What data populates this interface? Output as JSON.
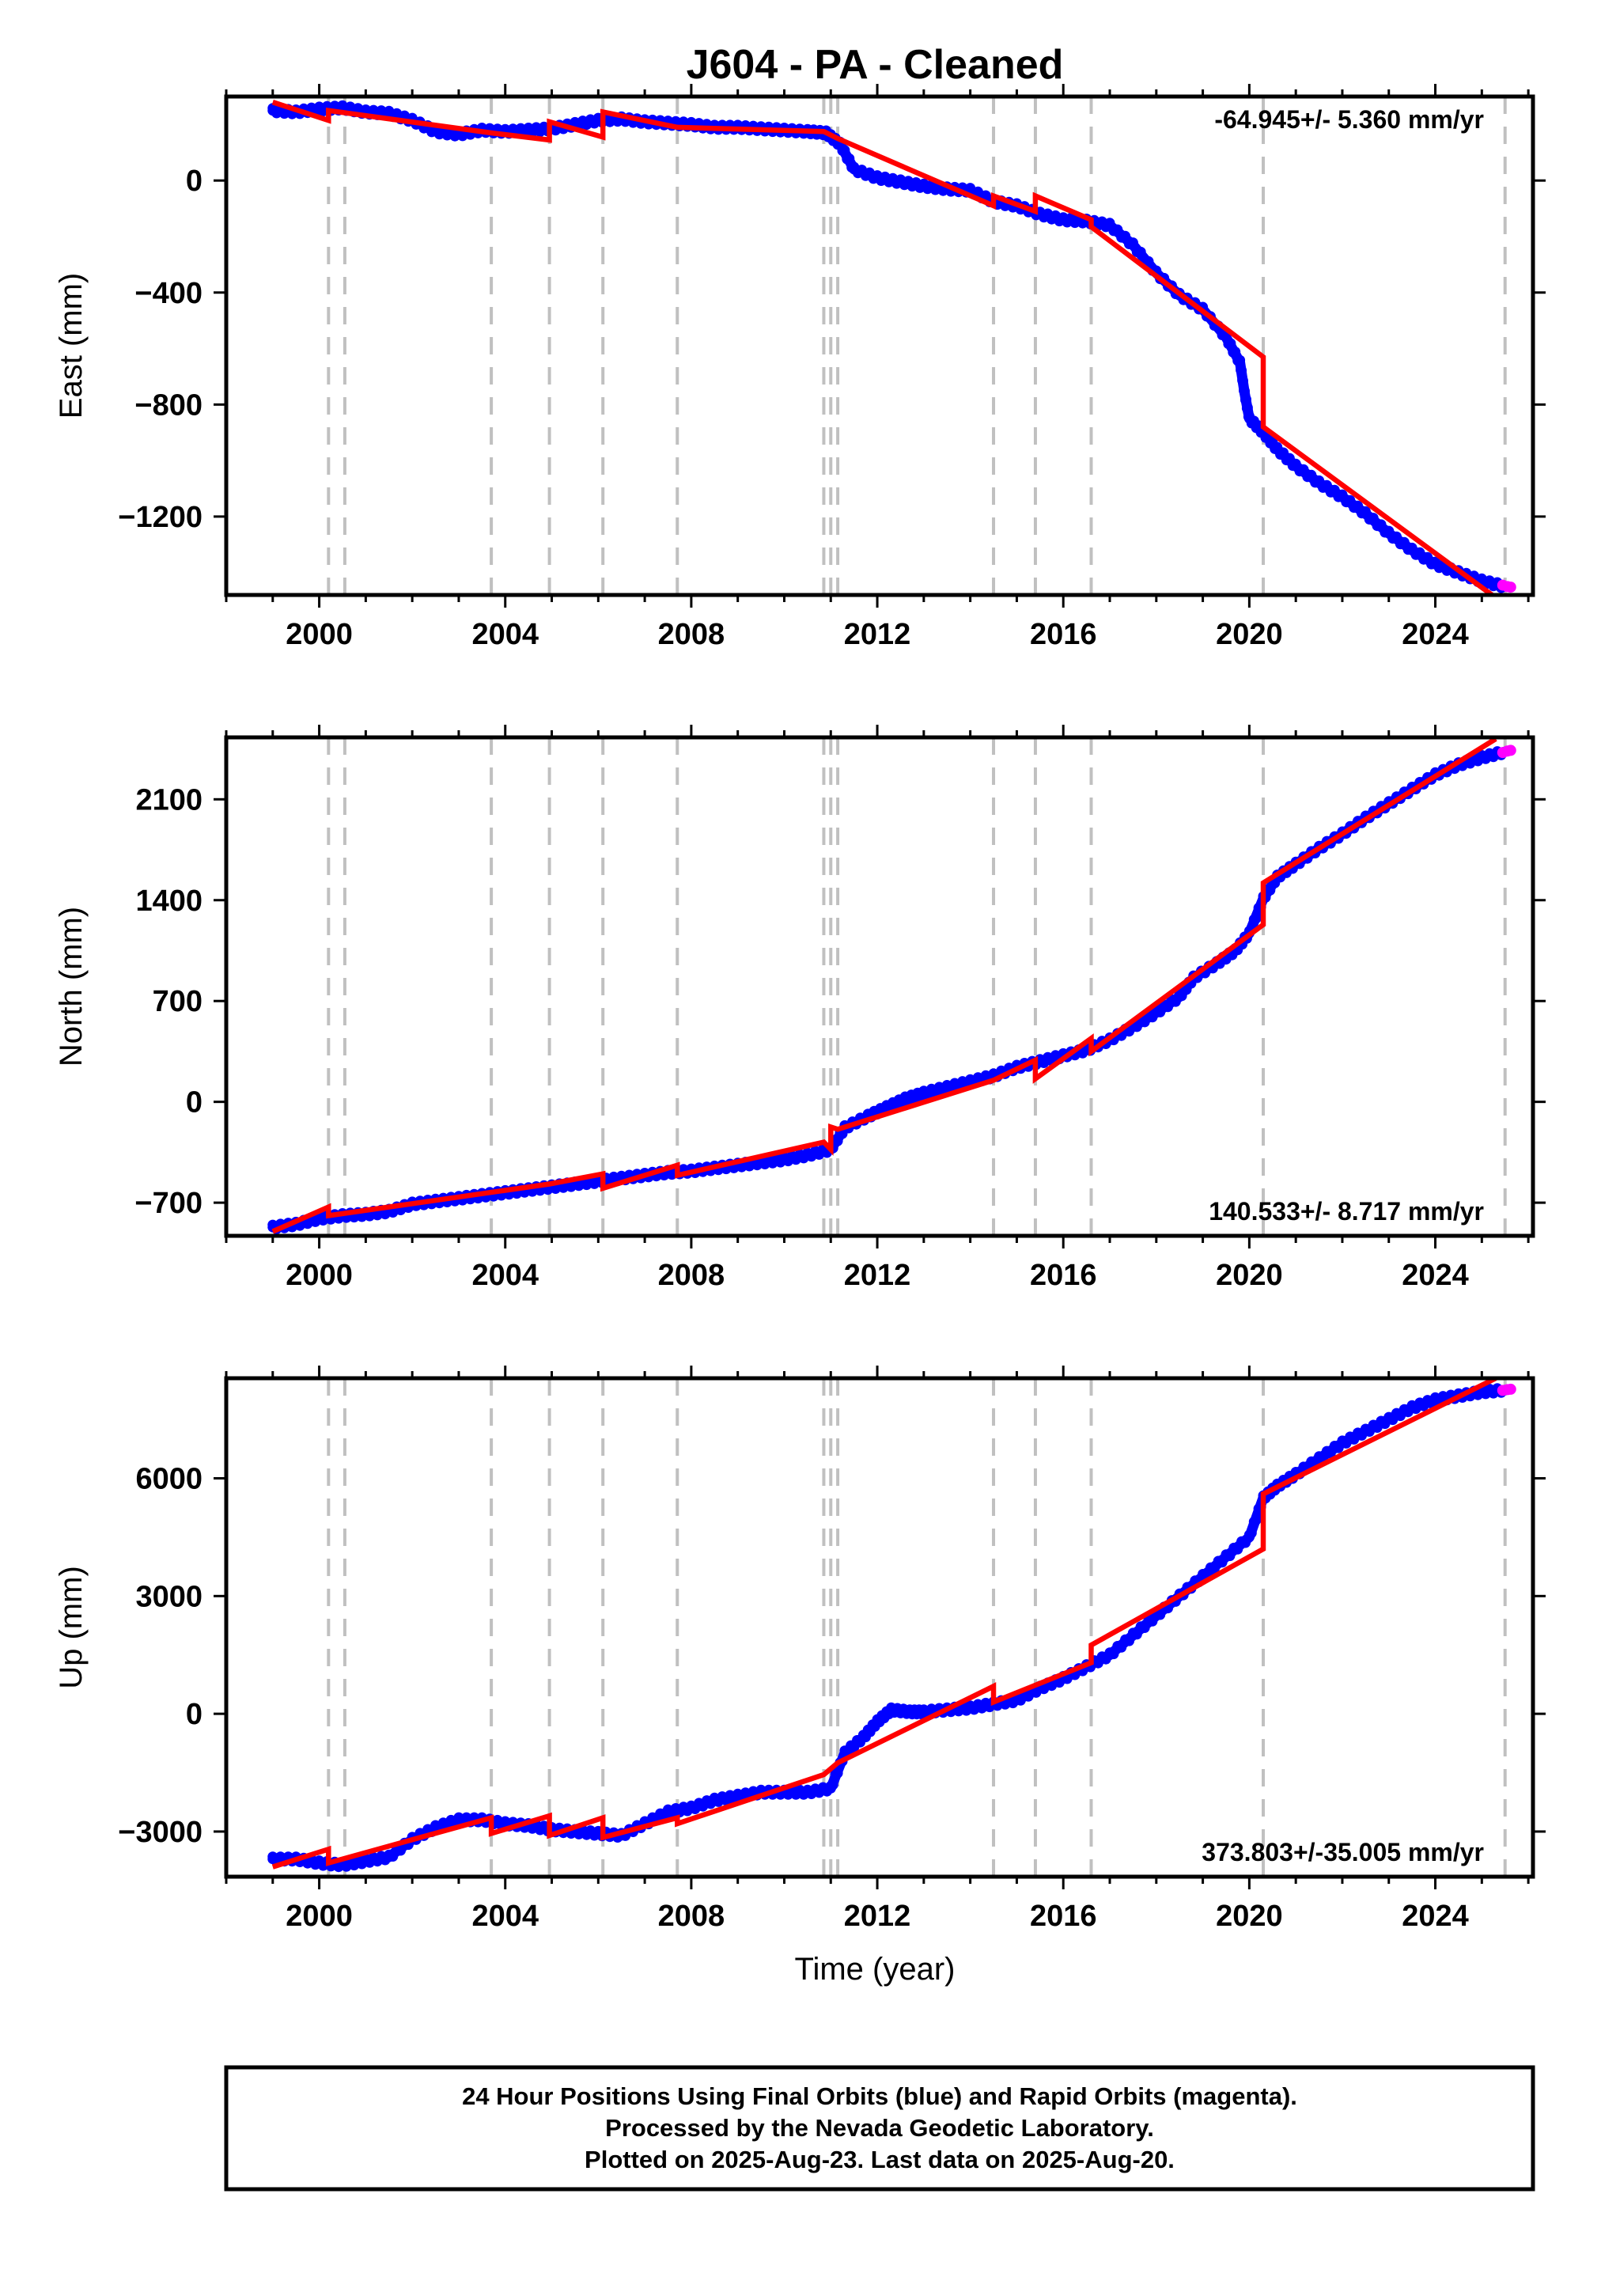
{
  "title": "J604  - PA - Cleaned",
  "xlabel": "Time (year)",
  "footer": [
    "24 Hour Positions Using Final Orbits (blue) and Rapid Orbits (magenta).",
    "Processed by the Nevada Geodetic Laboratory.",
    "Plotted on 2025-Aug-23. Last data on 2025-Aug-20."
  ],
  "colors": {
    "final": "#0000ff",
    "rapid": "#ff00ff",
    "model": "#ff0000",
    "steps": "#c0c0c0"
  },
  "chart_data": [
    {
      "type": "scatter",
      "panel": "east",
      "ylabel": "East (mm)",
      "rate_label": "-64.945+/- 5.360 mm/yr",
      "xlim": [
        1998.0,
        2026.1
      ],
      "ylim": [
        -1480,
        300
      ],
      "xticks": [
        2000,
        2004,
        2008,
        2012,
        2016,
        2020,
        2024
      ],
      "yticks": [
        0,
        -400,
        -800,
        -1200
      ],
      "step_epochs": [
        2000.2,
        2000.55,
        2003.7,
        2004.95,
        2006.1,
        2007.7,
        2010.85,
        2011.0,
        2011.15,
        2014.5,
        2015.4,
        2016.6,
        2020.3,
        2025.5
      ],
      "observed": {
        "x": [
          1999.0,
          1999.5,
          2000.0,
          2000.5,
          2001.0,
          2001.5,
          2002.0,
          2002.5,
          2003.0,
          2003.5,
          2004.0,
          2004.5,
          2005.0,
          2005.5,
          2006.0,
          2006.5,
          2007.0,
          2007.5,
          2008.0,
          2008.5,
          2009.0,
          2009.5,
          2010.0,
          2010.5,
          2010.9,
          2011.2,
          2011.5,
          2012.0,
          2012.5,
          2013.0,
          2013.5,
          2014.0,
          2014.5,
          2015.0,
          2015.5,
          2016.0,
          2016.5,
          2017.0,
          2017.5,
          2018.0,
          2018.5,
          2019.0,
          2019.5,
          2019.8,
          2019.9,
          2020.0,
          2020.3,
          2020.6,
          2021.0,
          2021.5,
          2022.0,
          2022.5,
          2023.0,
          2023.5,
          2024.0,
          2024.5,
          2025.0,
          2025.5
        ],
        "y": [
          250,
          245,
          255,
          260,
          245,
          240,
          215,
          175,
          165,
          180,
          175,
          180,
          185,
          200,
          215,
          220,
          210,
          205,
          200,
          190,
          190,
          185,
          180,
          175,
          170,
          130,
          40,
          10,
          -5,
          -20,
          -30,
          -35,
          -75,
          -90,
          -120,
          -140,
          -145,
          -160,
          -230,
          -330,
          -410,
          -460,
          -560,
          -650,
          -760,
          -850,
          -900,
          -960,
          -1020,
          -1080,
          -1130,
          -1190,
          -1260,
          -1320,
          -1370,
          -1400,
          -1430,
          -1450
        ]
      },
      "rapid": {
        "x": [
          2025.45,
          2025.55,
          2025.62
        ],
        "y": [
          -1445,
          -1450,
          -1452
        ]
      },
      "model": {
        "x": [
          1999.0,
          2000.2,
          2000.2,
          2003.7,
          2004.95,
          2004.95,
          2006.1,
          2006.1,
          2007.7,
          2010.85,
          2011.15,
          2014.5,
          2014.5,
          2015.4,
          2015.4,
          2016.6,
          2016.6,
          2020.3,
          2020.3,
          2025.3
        ],
        "y": [
          280,
          215,
          250,
          170,
          145,
          210,
          155,
          245,
          190,
          175,
          150,
          -90,
          -55,
          -110,
          -55,
          -140,
          -165,
          -630,
          -880,
          -1490
        ]
      }
    },
    {
      "type": "scatter",
      "panel": "north",
      "ylabel": "North (mm)",
      "rate_label": "140.533+/- 8.717 mm/yr",
      "xlim": [
        1998.0,
        2026.1
      ],
      "ylim": [
        -930,
        2530
      ],
      "xticks": [
        2000,
        2004,
        2008,
        2012,
        2016,
        2020,
        2024
      ],
      "yticks": [
        2100,
        1400,
        700,
        0,
        -700
      ],
      "step_epochs": [
        2000.2,
        2000.55,
        2003.7,
        2004.95,
        2006.1,
        2007.7,
        2010.85,
        2011.0,
        2011.15,
        2014.5,
        2015.4,
        2016.6,
        2020.3,
        2025.5
      ],
      "observed": {
        "x": [
          1999.0,
          1999.5,
          2000.0,
          2000.5,
          2001.0,
          2001.5,
          2002.0,
          2002.5,
          2003.0,
          2003.5,
          2004.0,
          2004.5,
          2005.0,
          2005.5,
          2006.0,
          2006.5,
          2007.0,
          2007.5,
          2008.0,
          2008.5,
          2009.0,
          2009.5,
          2010.0,
          2010.5,
          2011.0,
          2011.3,
          2011.8,
          2012.2,
          2012.6,
          2013.0,
          2013.5,
          2014.0,
          2014.5,
          2015.0,
          2015.5,
          2016.0,
          2016.5,
          2017.0,
          2017.5,
          2018.0,
          2018.5,
          2018.8,
          2019.3,
          2019.7,
          2020.0,
          2020.3,
          2020.6,
          2021.0,
          2021.5,
          2022.0,
          2022.5,
          2023.0,
          2023.5,
          2024.0,
          2024.5,
          2025.0,
          2025.5
        ],
        "y": [
          -870,
          -850,
          -810,
          -790,
          -780,
          -760,
          -710,
          -690,
          -670,
          -650,
          -630,
          -610,
          -590,
          -570,
          -550,
          -530,
          -510,
          -490,
          -480,
          -460,
          -440,
          -420,
          -400,
          -370,
          -330,
          -180,
          -100,
          -40,
          20,
          60,
          100,
          140,
          180,
          240,
          280,
          320,
          360,
          430,
          520,
          620,
          730,
          860,
          960,
          1050,
          1170,
          1410,
          1560,
          1650,
          1760,
          1860,
          1970,
          2070,
          2170,
          2270,
          2340,
          2390,
          2430
        ]
      },
      "rapid": {
        "x": [
          2025.45,
          2025.55,
          2025.62
        ],
        "y": [
          2425,
          2435,
          2440
        ]
      },
      "model": {
        "x": [
          1999.0,
          2000.2,
          2000.2,
          2004.95,
          2006.1,
          2006.1,
          2007.7,
          2007.7,
          2010.85,
          2011.0,
          2011.0,
          2011.15,
          2014.5,
          2015.4,
          2015.4,
          2016.6,
          2016.6,
          2020.3,
          2020.3,
          2025.3
        ],
        "y": [
          -900,
          -730,
          -790,
          -570,
          -500,
          -600,
          -440,
          -510,
          -280,
          -330,
          -175,
          -190,
          150,
          290,
          160,
          440,
          350,
          1230,
          1520,
          2520
        ]
      }
    },
    {
      "type": "scatter",
      "panel": "up",
      "ylabel": "Up (mm)",
      "rate_label": "373.803+/-35.005 mm/yr",
      "xlim": [
        1998.0,
        2026.1
      ],
      "ylim": [
        -4150,
        8550
      ],
      "xticks": [
        2000,
        2004,
        2008,
        2012,
        2016,
        2020,
        2024
      ],
      "yticks": [
        6000,
        3000,
        0,
        -3000
      ],
      "step_epochs": [
        2000.2,
        2000.55,
        2003.7,
        2004.95,
        2006.1,
        2007.7,
        2010.85,
        2011.0,
        2011.15,
        2014.5,
        2015.4,
        2016.6,
        2020.3,
        2025.5
      ],
      "observed": {
        "x": [
          1999.0,
          1999.5,
          2000.0,
          2000.5,
          2001.0,
          2001.5,
          2002.0,
          2002.5,
          2003.0,
          2003.5,
          2004.0,
          2004.5,
          2005.0,
          2005.5,
          2006.0,
          2006.5,
          2007.0,
          2007.5,
          2008.0,
          2008.5,
          2009.0,
          2009.5,
          2010.0,
          2010.5,
          2011.0,
          2011.3,
          2011.7,
          2012.0,
          2012.3,
          2012.7,
          2013.0,
          2013.5,
          2014.0,
          2014.5,
          2015.0,
          2015.5,
          2016.0,
          2016.5,
          2017.0,
          2017.5,
          2018.0,
          2018.5,
          2019.0,
          2019.5,
          2020.0,
          2020.3,
          2020.6,
          2021.0,
          2021.5,
          2022.0,
          2022.5,
          2023.0,
          2023.5,
          2024.0,
          2024.5,
          2025.0,
          2025.5
        ],
        "y": [
          -3700,
          -3700,
          -3800,
          -3850,
          -3750,
          -3650,
          -3200,
          -2900,
          -2700,
          -2700,
          -2800,
          -2850,
          -2950,
          -3000,
          -3050,
          -3100,
          -2800,
          -2500,
          -2400,
          -2200,
          -2100,
          -2000,
          -2000,
          -2000,
          -1900,
          -1000,
          -600,
          -200,
          100,
          50,
          50,
          100,
          150,
          250,
          350,
          650,
          900,
          1200,
          1500,
          2000,
          2500,
          3000,
          3500,
          4000,
          4500,
          5500,
          5800,
          6100,
          6500,
          6900,
          7200,
          7500,
          7800,
          8000,
          8100,
          8200,
          8250
        ]
      },
      "rapid": {
        "x": [
          2025.45,
          2025.55,
          2025.62
        ],
        "y": [
          8240,
          8260,
          8270
        ]
      },
      "model": {
        "x": [
          1999.0,
          2000.2,
          2000.2,
          2003.7,
          2003.7,
          2004.95,
          2004.95,
          2006.1,
          2006.1,
          2007.7,
          2007.7,
          2010.85,
          2011.15,
          2014.5,
          2014.5,
          2016.6,
          2016.6,
          2020.3,
          2020.3,
          2025.3
        ],
        "y": [
          -3900,
          -3450,
          -3800,
          -2650,
          -3050,
          -2600,
          -3100,
          -2650,
          -3150,
          -2650,
          -2800,
          -1550,
          -1250,
          700,
          300,
          1300,
          1750,
          4200,
          5600,
          8550
        ]
      }
    }
  ]
}
